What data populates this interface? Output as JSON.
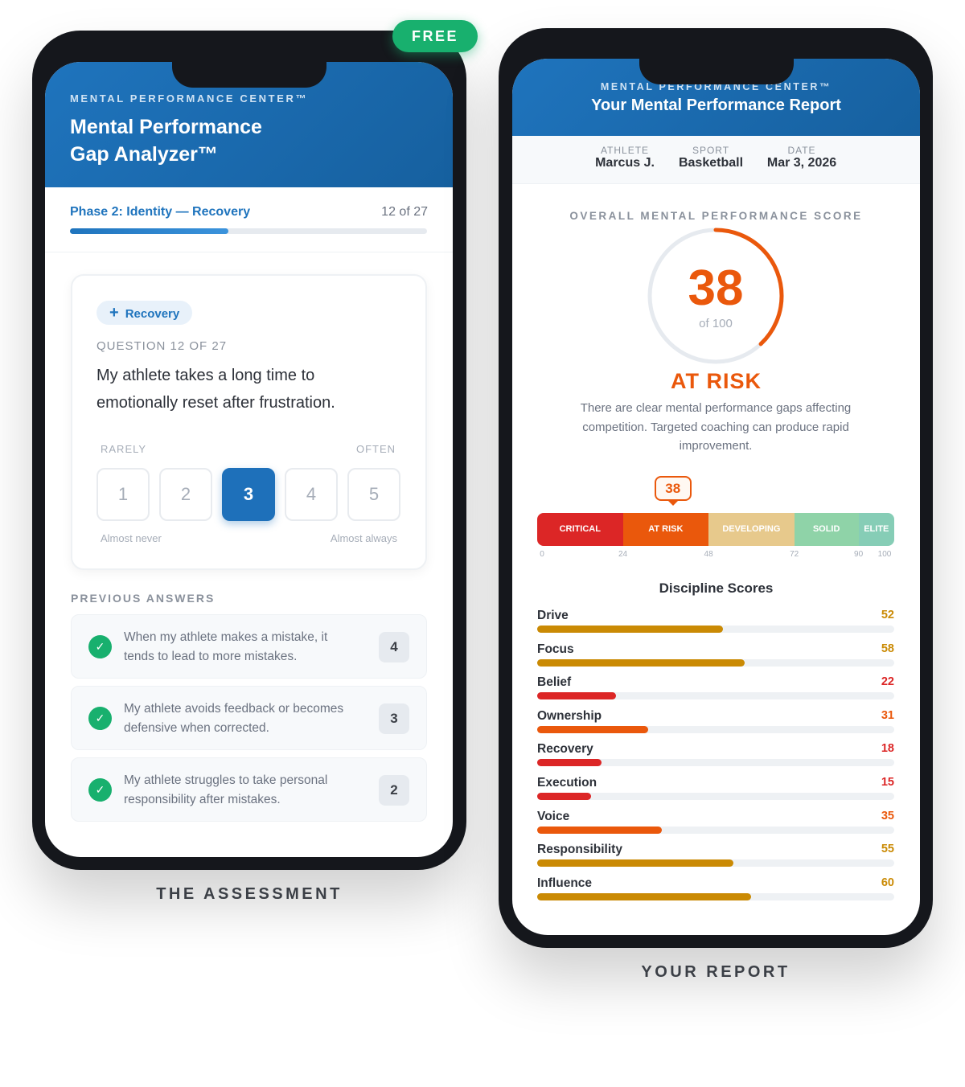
{
  "badge": "FREE",
  "assessment": {
    "caption": "THE ASSESSMENT",
    "eyebrow": "MENTAL PERFORMANCE CENTER™",
    "title_line1": "Mental Performance",
    "title_line2": "Gap Analyzer™",
    "phase": "Phase 2: Identity — Recovery",
    "progress_text": "12 of 27",
    "progress_fraction": 0.444,
    "tag": "Recovery",
    "question_label": "QUESTION 12 OF 27",
    "question": "My athlete takes a long time to emotionally reset after frustration.",
    "scale_low": "RARELY",
    "scale_high": "OFTEN",
    "options": [
      "1",
      "2",
      "3",
      "4",
      "5"
    ],
    "selected": "3",
    "anchor_low": "Almost never",
    "anchor_high": "Almost always",
    "previous_title": "PREVIOUS ANSWERS",
    "previous": [
      {
        "text": "When my athlete makes a mistake, it tends to lead to more mistakes.",
        "answer": "4"
      },
      {
        "text": "My athlete avoids feedback or becomes defensive when corrected.",
        "answer": "3"
      },
      {
        "text": "My athlete struggles to take personal responsibility after mistakes.",
        "answer": "2"
      }
    ]
  },
  "report": {
    "caption": "YOUR REPORT",
    "eyebrow": "MENTAL PERFORMANCE CENTER™",
    "title": "Your Mental Performance Report",
    "meta": [
      {
        "label": "ATHLETE",
        "value": "Marcus J."
      },
      {
        "label": "SPORT",
        "value": "Basketball"
      },
      {
        "label": "DATE",
        "value": "Mar 3, 2026"
      }
    ],
    "score_title": "OVERALL MENTAL PERFORMANCE SCORE",
    "score": "38",
    "score_max": "of 100",
    "status": "AT RISK",
    "description": "There are clear mental performance gaps affecting competition. Targeted coaching can produce rapid improvement.",
    "marker": "38",
    "bands": [
      {
        "label": "CRITICAL",
        "color": "#dc2626"
      },
      {
        "label": "AT RISK",
        "color": "#ea580c"
      },
      {
        "label": "DEVELOPING",
        "color": "#e7c98c"
      },
      {
        "label": "SOLID",
        "color": "#8fd3a8"
      },
      {
        "label": "ELITE",
        "color": "#86cdb6"
      }
    ],
    "ticks": [
      "0",
      "24",
      "48",
      "72",
      "90",
      "100"
    ],
    "disciplines_title": "Discipline Scores",
    "disciplines": [
      {
        "name": "Drive",
        "score": "52"
      },
      {
        "name": "Focus",
        "score": "58"
      },
      {
        "name": "Belief",
        "score": "22"
      },
      {
        "name": "Ownership",
        "score": "31"
      },
      {
        "name": "Recovery",
        "score": "18"
      },
      {
        "name": "Execution",
        "score": "15"
      },
      {
        "name": "Voice",
        "score": "35"
      },
      {
        "name": "Responsibility",
        "score": "55"
      },
      {
        "name": "Influence",
        "score": "60"
      }
    ],
    "colors": {
      "low": "#dc2626",
      "mid": "#ea580c",
      "high": "#ca8a04"
    }
  }
}
